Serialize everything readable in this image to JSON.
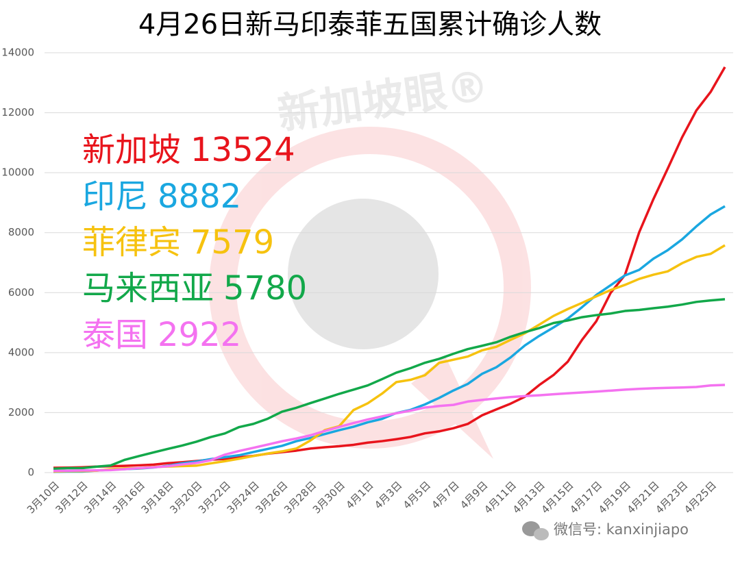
{
  "chart_data": {
    "type": "line",
    "title": "4月26日新马印泰菲五国累计确诊人数",
    "watermark": "新加坡眼®",
    "footer": "微信号: kanxinjiapo",
    "categories": [
      "3月10日",
      null,
      "3月12日",
      null,
      "3月14日",
      null,
      "3月16日",
      null,
      "3月18日",
      null,
      "3月20日",
      null,
      "3月22日",
      null,
      "3月24日",
      null,
      "3月26日",
      null,
      "3月28日",
      null,
      "3月30日",
      null,
      "4月1日",
      null,
      "4月3日",
      null,
      "4月5日",
      null,
      "4月7日",
      null,
      "4月9日",
      null,
      "4月11日",
      null,
      "4月13日",
      null,
      "4月15日",
      null,
      "4月17日",
      null,
      "4月19日",
      null,
      "4月21日",
      null,
      "4月23日",
      null,
      "4月25日",
      null
    ],
    "ylim": [
      0,
      14000
    ],
    "yticks": [
      0,
      2000,
      4000,
      6000,
      8000,
      10000,
      12000,
      14000
    ],
    "grid": true,
    "series": [
      {
        "name": "新加坡",
        "color": "#e8141c",
        "values": [
          160,
          166,
          178,
          200,
          212,
          226,
          243,
          266,
          313,
          345,
          385,
          432,
          455,
          509,
          558,
          631,
          683,
          732,
          802,
          844,
          879,
          926,
          1000,
          1049,
          1114,
          1189,
          1309,
          1375,
          1481,
          1623,
          1910,
          2108,
          2299,
          2532,
          2918,
          3252,
          3699,
          4427,
          5050,
          5992,
          6588,
          8014,
          9125,
          10141,
          11178,
          12075,
          12693,
          13524
        ]
      },
      {
        "name": "印尼",
        "color": "#1aa7e0",
        "values": [
          27,
          34,
          34,
          69,
          96,
          117,
          134,
          172,
          227,
          309,
          369,
          450,
          514,
          579,
          686,
          790,
          893,
          1046,
          1155,
          1285,
          1414,
          1528,
          1677,
          1790,
          1986,
          2092,
          2273,
          2491,
          2738,
          2956,
          3293,
          3512,
          3842,
          4241,
          4557,
          4839,
          5136,
          5516,
          5923,
          6248,
          6575,
          6760,
          7135,
          7418,
          7775,
          8211,
          8607,
          8882
        ]
      },
      {
        "name": "菲律宾",
        "color": "#f6c20f",
        "values": [
          33,
          49,
          52,
          64,
          111,
          140,
          142,
          187,
          202,
          217,
          230,
          307,
          380,
          462,
          552,
          636,
          707,
          803,
          1075,
          1418,
          1546,
          2084,
          2311,
          2633,
          3018,
          3094,
          3246,
          3660,
          3764,
          3870,
          4076,
          4195,
          4428,
          4648,
          4932,
          5223,
          5453,
          5660,
          5878,
          6087,
          6259,
          6459,
          6599,
          6710,
          6981,
          7192,
          7294,
          7579
        ]
      },
      {
        "name": "马来西亚",
        "color": "#12a84a",
        "values": [
          129,
          149,
          149,
          197,
          238,
          428,
          553,
          673,
          790,
          900,
          1030,
          1183,
          1306,
          1518,
          1624,
          1796,
          2031,
          2161,
          2320,
          2470,
          2626,
          2766,
          2908,
          3116,
          3333,
          3483,
          3662,
          3793,
          3963,
          4119,
          4228,
          4346,
          4530,
          4683,
          4817,
          4987,
          5072,
          5182,
          5251,
          5305,
          5389,
          5425,
          5482,
          5532,
          5603,
          5691,
          5742,
          5780
        ]
      },
      {
        "name": "泰国",
        "color": "#f472f0",
        "values": [
          53,
          59,
          70,
          75,
          82,
          114,
          147,
          177,
          212,
          272,
          322,
          411,
          599,
          721,
          827,
          934,
          1045,
          1136,
          1245,
          1388,
          1524,
          1651,
          1771,
          1875,
          1978,
          2067,
          2169,
          2220,
          2258,
          2369,
          2423,
          2473,
          2518,
          2551,
          2579,
          2613,
          2643,
          2672,
          2700,
          2733,
          2765,
          2792,
          2811,
          2826,
          2839,
          2854,
          2907,
          2922
        ]
      }
    ]
  }
}
